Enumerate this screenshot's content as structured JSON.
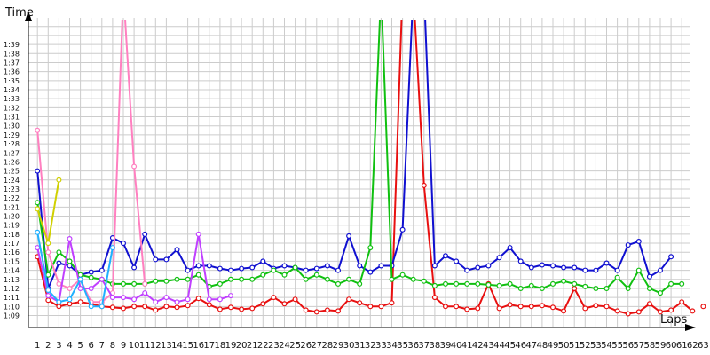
{
  "chart_data": {
    "type": "line",
    "ylabel": "Time",
    "xlabel": "Laps",
    "ylim": [
      "1:08",
      "1:42"
    ],
    "y_ticks": [
      "1:09",
      "1:10",
      "1:11",
      "1:12",
      "1:13",
      "1:14",
      "1:15",
      "1:16",
      "1:17",
      "1:18",
      "1:19",
      "1:20",
      "1:21",
      "1:22",
      "1:23",
      "1:24",
      "1:25",
      "1:26",
      "1:27",
      "1:28",
      "1:29",
      "1:30",
      "1:31",
      "1:32",
      "1:33",
      "1:34",
      "1:35",
      "1:36",
      "1:37",
      "1:38",
      "1:39"
    ],
    "x_ticks": [
      1,
      2,
      3,
      4,
      5,
      6,
      7,
      8,
      9,
      10,
      11,
      12,
      13,
      14,
      15,
      16,
      17,
      18,
      19,
      20,
      21,
      22,
      23,
      24,
      25,
      26,
      27,
      28,
      29,
      30,
      31,
      32,
      33,
      34,
      35,
      36,
      37,
      38,
      39,
      40,
      41,
      42,
      43,
      44,
      45,
      46,
      47,
      48,
      49,
      50,
      51,
      52,
      53,
      54,
      55,
      56,
      57,
      58,
      59,
      60,
      61,
      62,
      63
    ],
    "grid": true,
    "legend": "none",
    "series": [
      {
        "color": "#e81010",
        "laps": [
          1,
          2,
          3,
          4,
          5,
          6,
          7,
          8,
          9,
          10,
          11,
          12,
          13,
          14,
          15,
          16,
          17,
          18,
          19,
          20,
          21,
          22,
          23,
          24,
          25,
          26,
          27,
          28,
          29,
          30,
          31,
          32,
          33,
          34,
          35,
          36,
          37,
          38,
          39,
          40,
          41,
          42,
          43,
          44,
          45,
          46,
          47,
          48,
          49,
          50,
          51,
          52,
          53,
          54,
          55,
          56,
          57,
          58,
          59,
          60,
          61,
          62,
          63
        ],
        "values": [
          "1:15.5",
          "1:10.7",
          "1:10.0",
          "1:10.3",
          "1:10.5",
          "1:10.3",
          "1:10.0",
          "1:09.9",
          "1:09.8",
          "1:10.0",
          "1:10.0",
          "1:09.6",
          "1:10.0",
          "1:09.9",
          "1:10.1",
          "1:10.9",
          "1:10.2",
          "1:09.7",
          "1:09.9",
          "1:09.7",
          "1:09.8",
          "1:10.3",
          "1:11.0",
          "1:10.3",
          "1:10.8",
          "1:09.6",
          "1:09.4",
          "1:09.6",
          "1:09.5",
          "1:10.8",
          "1:10.4",
          "1:10.0",
          "1:10.0",
          "1:10.4",
          "1:45.0",
          "1:45.0",
          "1:23.4",
          "1:11.0",
          "1:10.0",
          "1:10.0",
          "1:09.7",
          "1:09.8",
          "1:12.5",
          "1:09.8",
          "1:10.2",
          "1:10.0",
          "1:10.0",
          "1:10.1",
          "1:09.9",
          "1:09.5",
          "1:12.0",
          "1:09.8",
          "1:10.1",
          "1:10.0",
          "1:09.5",
          "1:09.2",
          "1:09.4",
          "1:10.3",
          "1:09.4",
          "1:09.6",
          "1:10.5",
          "1:09.5",
          "1:10.0"
        ]
      },
      {
        "color": "#1010d0",
        "laps": [
          1,
          2,
          3,
          4,
          5,
          6,
          7,
          8,
          9,
          10,
          11,
          12,
          13,
          14,
          15,
          16,
          17,
          18,
          19,
          20,
          21,
          22,
          23,
          24,
          25,
          26,
          27,
          28,
          29,
          30,
          31,
          32,
          33,
          34,
          35,
          36,
          37,
          38,
          39,
          40,
          41,
          42,
          43,
          44,
          45,
          46,
          47,
          48,
          49,
          50,
          51,
          52,
          53,
          54,
          55,
          56,
          57,
          58,
          59,
          60
        ],
        "values": [
          "1:25.0",
          "1:12.0",
          "1:14.8",
          "1:14.5",
          "1:13.5",
          "1:13.8",
          "1:14.0",
          "1:17.6",
          "1:17.0",
          "1:14.3",
          "1:18.0",
          "1:15.2",
          "1:15.2",
          "1:16.3",
          "1:14.0",
          "1:14.5",
          "1:14.5",
          "1:14.2",
          "1:14.0",
          "1:14.2",
          "1:14.3",
          "1:15.0",
          "1:14.2",
          "1:14.5",
          "1:14.3",
          "1:14.0",
          "1:14.2",
          "1:14.5",
          "1:14.0",
          "1:17.8",
          "1:14.5",
          "1:13.8",
          "1:14.5",
          "1:14.5",
          "1:18.5",
          "1:45.0",
          "1:45.0",
          "1:14.5",
          "1:15.6",
          "1:15.0",
          "1:14.0",
          "1:14.3",
          "1:14.5",
          "1:15.4",
          "1:16.5",
          "1:15.0",
          "1:14.3",
          "1:14.6",
          "1:14.5",
          "1:14.3",
          "1:14.3",
          "1:14.0",
          "1:14.0",
          "1:14.8",
          "1:14.0",
          "1:16.8",
          "1:17.2",
          "1:13.3",
          "1:14.0",
          "1:15.5"
        ]
      },
      {
        "color": "#10c010",
        "laps": [
          1,
          2,
          3,
          4,
          5,
          6,
          7,
          8,
          9,
          10,
          11,
          12,
          13,
          14,
          15,
          16,
          17,
          18,
          19,
          20,
          21,
          22,
          23,
          24,
          25,
          26,
          27,
          28,
          29,
          30,
          31,
          32,
          33,
          34,
          35,
          36,
          37,
          38,
          39,
          40,
          41,
          42,
          43,
          44,
          45,
          46,
          47,
          48,
          49,
          50,
          51,
          52,
          53,
          54,
          55,
          56,
          57,
          58,
          59,
          60,
          61
        ],
        "values": [
          "1:21.5",
          "1:13.5",
          "1:16.0",
          "1:15.0",
          "1:13.5",
          "1:13.2",
          "1:13.0",
          "1:12.5",
          "1:12.5",
          "1:12.5",
          "1:12.5",
          "1:12.8",
          "1:12.8",
          "1:13.0",
          "1:13.0",
          "1:13.5",
          "1:12.2",
          "1:12.5",
          "1:13.0",
          "1:13.0",
          "1:13.0",
          "1:13.5",
          "1:14.0",
          "1:13.5",
          "1:14.3",
          "1:13.0",
          "1:13.5",
          "1:13.0",
          "1:12.5",
          "1:13.0",
          "1:12.5",
          "1:16.5",
          "1:45.0",
          "1:13.0",
          "1:13.5",
          "1:13.0",
          "1:12.8",
          "1:12.3",
          "1:12.5",
          "1:12.5",
          "1:12.5",
          "1:12.5",
          "1:12.4",
          "1:12.3",
          "1:12.5",
          "1:12.0",
          "1:12.3",
          "1:12.0",
          "1:12.5",
          "1:12.8",
          "1:12.5",
          "1:12.2",
          "1:12.0",
          "1:12.0",
          "1:13.2",
          "1:12.0",
          "1:14.0",
          "1:12.0",
          "1:11.5",
          "1:12.5",
          "1:12.5"
        ]
      },
      {
        "color": "#ff80c0",
        "laps": [
          1,
          2,
          3,
          4,
          5,
          6,
          7,
          8,
          9,
          10,
          11
        ],
        "values": [
          "1:29.5",
          "1:16.0",
          "1:12.5",
          "1:12.0",
          "1:13.0",
          "1:10.5",
          "1:10.5",
          "1:11.5",
          "1:45.0",
          "1:25.5",
          "1:12.5"
        ]
      },
      {
        "color": "#d0d000",
        "laps": [
          1,
          2,
          3
        ],
        "values": [
          "1:20.8",
          "1:17.0",
          "1:24.0"
        ]
      },
      {
        "color": "#c040ff",
        "laps": [
          1,
          2,
          3,
          4,
          5,
          6,
          7,
          8,
          9,
          10,
          11,
          12,
          13,
          14,
          15,
          16,
          17,
          18,
          19
        ],
        "values": [
          "1:16.5",
          "1:11.2",
          "1:10.5",
          "1:17.5",
          "1:12.0",
          "1:12.0",
          "1:13.0",
          "1:11.0",
          "1:11.0",
          "1:10.8",
          "1:11.5",
          "1:10.5",
          "1:11.0",
          "1:10.5",
          "1:10.8",
          "1:18.0",
          "1:10.8",
          "1:10.8",
          "1:11.2"
        ]
      },
      {
        "color": "#20b0ff",
        "laps": [
          1,
          2,
          3,
          4,
          5,
          6,
          7,
          8
        ],
        "values": [
          "1:18.2",
          "1:11.8",
          "1:10.5",
          "1:10.8",
          "1:13.0",
          "1:10.0",
          "1:10.0",
          "1:16.5"
        ]
      }
    ]
  }
}
